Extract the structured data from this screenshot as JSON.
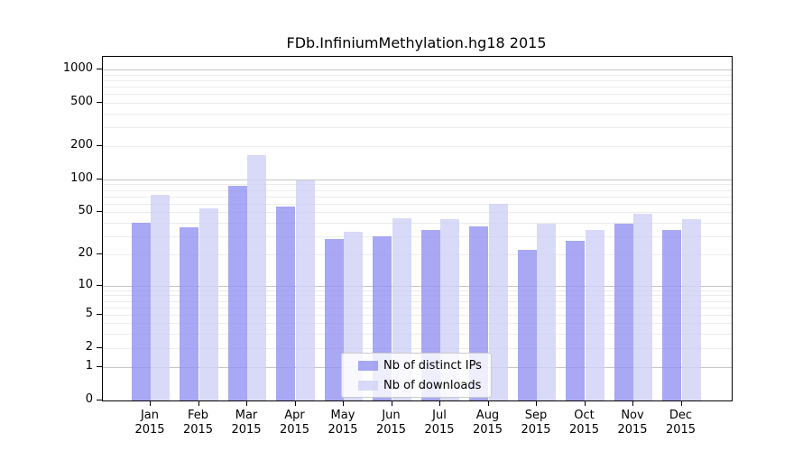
{
  "title": "FDb.InfiniumMethylation.hg18 2015",
  "colors": {
    "ips_bar": "#9292f2",
    "downloads_bar": "#d0d0f6",
    "bar_alpha": 0.8,
    "grid_major": "#c6c6c6",
    "grid_minor": "#ececec",
    "spine": "#000000",
    "legend_border": "#cccccc"
  },
  "chart_data": {
    "type": "bar",
    "title": "FDb.InfiniumMethylation.hg18 2015",
    "scale": "log1p",
    "grid": true,
    "legend_position": "lower center",
    "categories": [
      "Jan",
      "Feb",
      "Mar",
      "Apr",
      "May",
      "Jun",
      "Jul",
      "Aug",
      "Sep",
      "Oct",
      "Nov",
      "Dec"
    ],
    "year": "2015",
    "series": [
      {
        "name": "Nb of distinct IPs",
        "color": "#9292f2",
        "values": [
          40,
          36,
          88,
          56,
          28,
          30,
          34,
          37,
          22,
          27,
          39,
          34
        ]
      },
      {
        "name": "Nb of downloads",
        "color": "#d0d0f6",
        "values": [
          72,
          54,
          166,
          97,
          33,
          44,
          43,
          60,
          39,
          34,
          48,
          43
        ]
      }
    ],
    "y_ticks": [
      0,
      1,
      2,
      5,
      10,
      20,
      50,
      100,
      200,
      500,
      1000
    ],
    "major_gridlines": [
      1,
      10,
      100,
      1000
    ],
    "minor_gridline_steps": [
      2,
      3,
      4,
      5,
      6,
      7,
      8,
      9
    ],
    "minor_gridline_decades": [
      1,
      10,
      100
    ],
    "ylim": [
      0,
      1300
    ]
  },
  "legend": {
    "items": [
      {
        "label": "Nb of distinct IPs"
      },
      {
        "label": "Nb of downloads"
      }
    ]
  }
}
